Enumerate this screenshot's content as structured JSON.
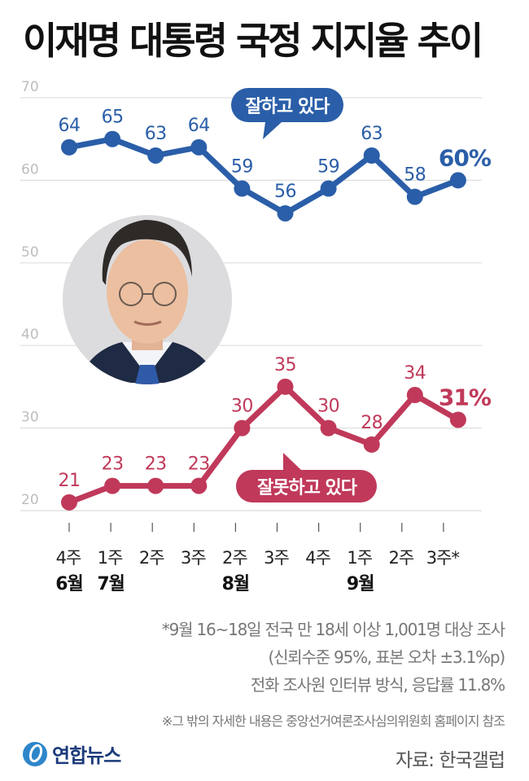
{
  "title": "이재명 대통령 국정 지지율 추이",
  "chart_data": {
    "type": "line",
    "title": "이재명 대통령 국정 지지율 추이",
    "xlabel": "",
    "ylabel": "",
    "ylim": [
      20,
      70
    ],
    "yticks": [
      "70",
      "60",
      "50",
      "40",
      "30",
      "20"
    ],
    "ytick_values": [
      70,
      60,
      50,
      40,
      30,
      20
    ],
    "grid": true,
    "categories": [
      "4주",
      "1주",
      "2주",
      "3주",
      "2주",
      "3주",
      "4주",
      "1주",
      "2주",
      "3주*"
    ],
    "month_labels": [
      {
        "index": 0,
        "label": "6월"
      },
      {
        "index": 1,
        "label": "7월"
      },
      {
        "index": 4,
        "label": "8월"
      },
      {
        "index": 7,
        "label": "9월"
      }
    ],
    "series": [
      {
        "name": "잘하고 있다",
        "color": "#2a5ea8",
        "values": [
          64,
          65,
          63,
          64,
          59,
          56,
          59,
          63,
          58,
          60
        ],
        "labels": [
          "64",
          "65",
          "63",
          "64",
          "59",
          "56",
          "59",
          "63",
          "58",
          "60%"
        ]
      },
      {
        "name": "잘못하고 있다",
        "color": "#c0395a",
        "values": [
          21,
          23,
          23,
          23,
          30,
          35,
          30,
          28,
          34,
          31
        ],
        "labels": [
          "21",
          "23",
          "23",
          "23",
          "30",
          "35",
          "30",
          "28",
          "34",
          "31%"
        ]
      }
    ]
  },
  "notes": {
    "line1": "*9월 16~18일 전국 만 18세 이상 1,001명 대상 조사",
    "line2": "(신뢰수준 95%, 표본 오차 ±3.1%p)",
    "line3": "전화 조사원 인터뷰 방식, 응답률 11.8%",
    "footnote": "※그 밖의 자세한 내용은 중앙선거여론조사심의위원회 홈페이지 참조"
  },
  "logo": "연합뉴스",
  "source": "자료: 한국갤럽"
}
